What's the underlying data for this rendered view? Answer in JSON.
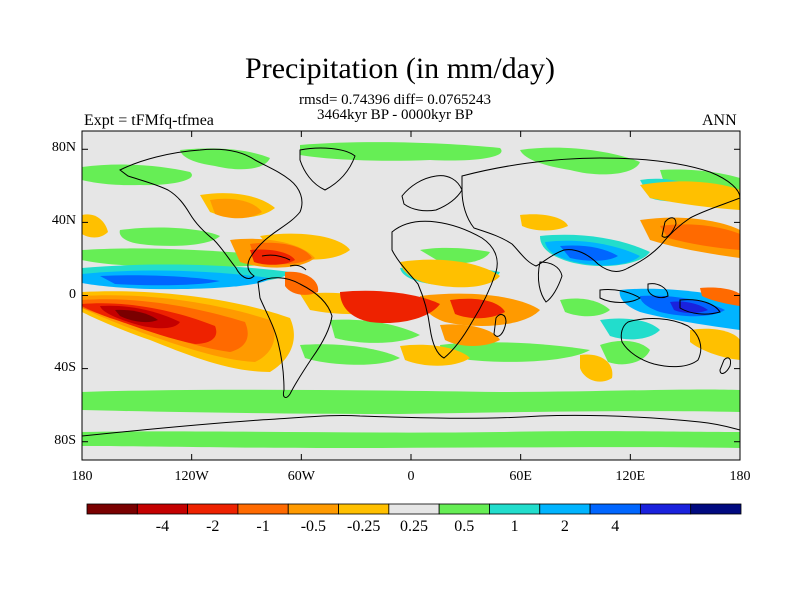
{
  "title": "Precipitation (in mm/day)",
  "stats": {
    "rmsd_line": "rmsd= 0.74396 diff= 0.0765243",
    "period_line": "3464kyr BP - 0000kyr BP"
  },
  "experiment_label": "Expt = tFMfq-tfmea",
  "season_label": "ANN",
  "axes": {
    "y_ticks": [
      {
        "label": "80N",
        "lat": 80
      },
      {
        "label": "40N",
        "lat": 40
      },
      {
        "label": "0",
        "lat": 0
      },
      {
        "label": "40S",
        "lat": -40
      },
      {
        "label": "80S",
        "lat": -80
      }
    ],
    "x_ticks": [
      {
        "label": "180",
        "lon": -180
      },
      {
        "label": "120W",
        "lon": -120
      },
      {
        "label": "60W",
        "lon": -60
      },
      {
        "label": "0",
        "lon": 0
      },
      {
        "label": "60E",
        "lon": 60
      },
      {
        "label": "120E",
        "lon": 120
      },
      {
        "label": "180",
        "lon": 180
      }
    ],
    "lon_range": [
      -180,
      180
    ],
    "lat_range": [
      -90,
      90
    ]
  },
  "colorbar": {
    "colors": [
      "#7a0000",
      "#c40000",
      "#ee2200",
      "#ff6a00",
      "#ff9a00",
      "#ffc000",
      "#e6e6e6",
      "#66ee55",
      "#22ddcc",
      "#00b4ff",
      "#0066ff",
      "#1a22dd",
      "#000a80"
    ],
    "labels": [
      "-4",
      "-2",
      "-1",
      "-0.5",
      "-0.25",
      "0.25",
      "0.5",
      "1",
      "2",
      "4"
    ],
    "label_boundaries": [
      1,
      2,
      3,
      4,
      5,
      6,
      7,
      8,
      9,
      10
    ]
  },
  "colors": {
    "background": "#e6e6e6",
    "coastline": "#000000"
  }
}
